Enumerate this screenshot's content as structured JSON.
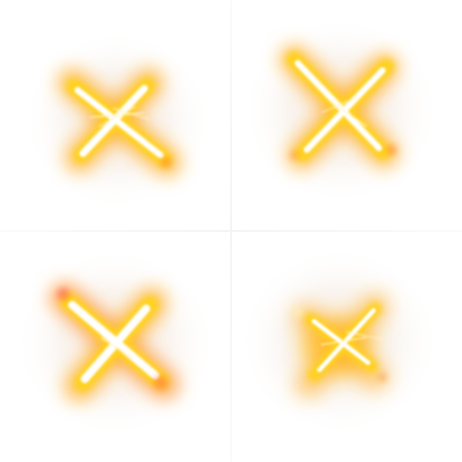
{
  "sprite_sheet": {
    "frames": [
      {
        "name": "x-spark-frame-1",
        "icon": "spark-x-icon",
        "palette": {
          "core": "#ffffff",
          "glow": "#ffd21f",
          "edge": "#ff8a2a",
          "haze": "#f3c9a8"
        }
      },
      {
        "name": "x-spark-frame-2",
        "icon": "spark-x-icon",
        "palette": {
          "core": "#ffffff",
          "glow": "#ffd21f",
          "edge": "#ff8a2a",
          "haze": "#f3c9a8"
        }
      },
      {
        "name": "x-spark-frame-3",
        "icon": "spark-x-icon",
        "palette": {
          "core": "#ffffff",
          "glow": "#ffd21f",
          "edge": "#ff5a5a",
          "haze": "#f3c9a8"
        }
      },
      {
        "name": "x-spark-frame-4",
        "icon": "spark-x-icon",
        "palette": {
          "core": "#ffffff",
          "glow": "#ffd21f",
          "edge": "#ff8a2a",
          "haze": "#f3c9a8"
        }
      }
    ]
  }
}
